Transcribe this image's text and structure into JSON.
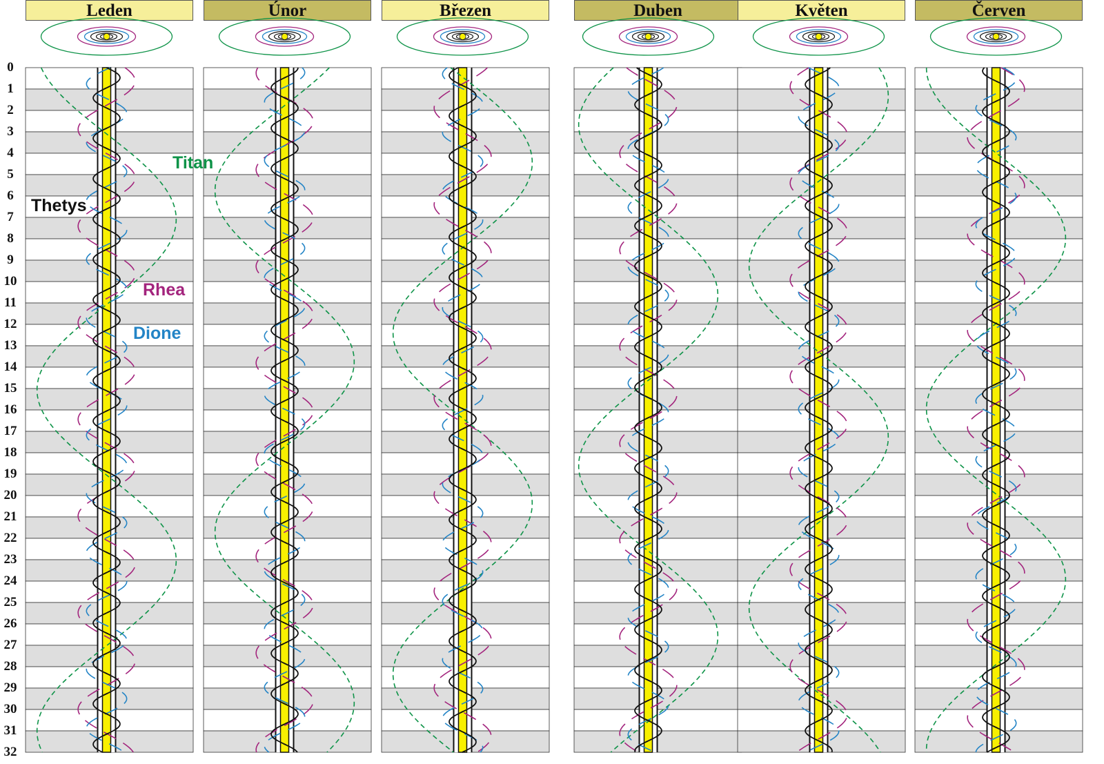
{
  "colors": {
    "header_light": "#f6ef9a",
    "header_dark": "#c4bb62",
    "row_shade": "#dedede",
    "saturn": "#f8f000",
    "titan": "#0e9348",
    "rhea": "#a3247d",
    "dione": "#2384c6",
    "tethys": "#111111"
  },
  "months": [
    {
      "name": "Leden",
      "header_style": "light"
    },
    {
      "name": "Únor",
      "header_style": "dark"
    },
    {
      "name": "Březen",
      "header_style": "light"
    },
    {
      "name": "Duben",
      "header_style": "dark"
    },
    {
      "name": "Květen",
      "header_style": "light"
    },
    {
      "name": "Červen",
      "header_style": "dark"
    }
  ],
  "days": [
    "0",
    "1",
    "2",
    "3",
    "4",
    "5",
    "6",
    "7",
    "8",
    "9",
    "10",
    "11",
    "12",
    "13",
    "14",
    "15",
    "16",
    "17",
    "18",
    "19",
    "20",
    "21",
    "22",
    "23",
    "24",
    "25",
    "26",
    "27",
    "28",
    "29",
    "30",
    "31",
    "32"
  ],
  "moon_labels": {
    "titan": "Titan",
    "tethys": "Thetys",
    "rhea": "Rhea",
    "dione": "Dione"
  },
  "moons": [
    {
      "key": "titan",
      "period_days": 15.945,
      "amp_fraction": 0.83,
      "line": "dash",
      "phase_deg": [
        290,
        140,
        350,
        210,
        60,
        270
      ]
    },
    {
      "key": "rhea",
      "period_days": 4.518,
      "amp_fraction": 0.34,
      "line": "longdash",
      "phase_deg": [
        40,
        250,
        120,
        310,
        200,
        10
      ]
    },
    {
      "key": "dione",
      "period_days": 2.737,
      "amp_fraction": 0.24,
      "line": "longdash",
      "phase_deg": [
        170,
        60,
        230,
        130,
        330,
        20
      ]
    },
    {
      "key": "tethys",
      "period_days": 1.888,
      "amp_fraction": 0.16,
      "line": "solid",
      "phase_deg": [
        0,
        90,
        200,
        300,
        120,
        240
      ]
    }
  ],
  "panel_count": 6,
  "day_count": 32
}
